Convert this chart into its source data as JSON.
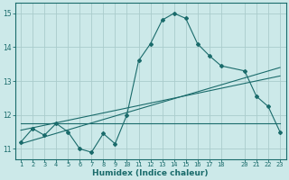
{
  "xlabel": "Humidex (Indice chaleur)",
  "bg_color": "#cce9e9",
  "grid_color": "#aacccc",
  "line_color": "#1a6b6b",
  "x_values": [
    1,
    2,
    3,
    4,
    5,
    6,
    7,
    8,
    9,
    10,
    11,
    12,
    13,
    14,
    15,
    16,
    17,
    18,
    20,
    21,
    22,
    23
  ],
  "y_main": [
    11.2,
    11.6,
    11.4,
    11.75,
    11.5,
    11.0,
    10.9,
    11.45,
    11.15,
    12.0,
    13.6,
    14.1,
    14.8,
    15.0,
    14.85,
    14.1,
    13.75,
    13.45,
    13.3,
    12.55,
    12.25,
    11.5
  ],
  "trend1_x": [
    1,
    23
  ],
  "trend1_y": [
    11.15,
    13.4
  ],
  "trend2_x": [
    1,
    23
  ],
  "trend2_y": [
    11.55,
    13.15
  ],
  "trend3_x": [
    1,
    23
  ],
  "trend3_y": [
    11.75,
    11.75
  ],
  "xlim": [
    0.5,
    23.5
  ],
  "ylim": [
    10.7,
    15.3
  ],
  "yticks": [
    11,
    12,
    13,
    14,
    15
  ],
  "xticks": [
    1,
    2,
    3,
    4,
    5,
    6,
    7,
    8,
    9,
    10,
    11,
    12,
    13,
    14,
    15,
    16,
    17,
    18,
    20,
    21,
    22,
    23
  ],
  "xlabel_fontsize": 6.5,
  "tick_fontsize": 5,
  "ylabel_fontsize": 6
}
